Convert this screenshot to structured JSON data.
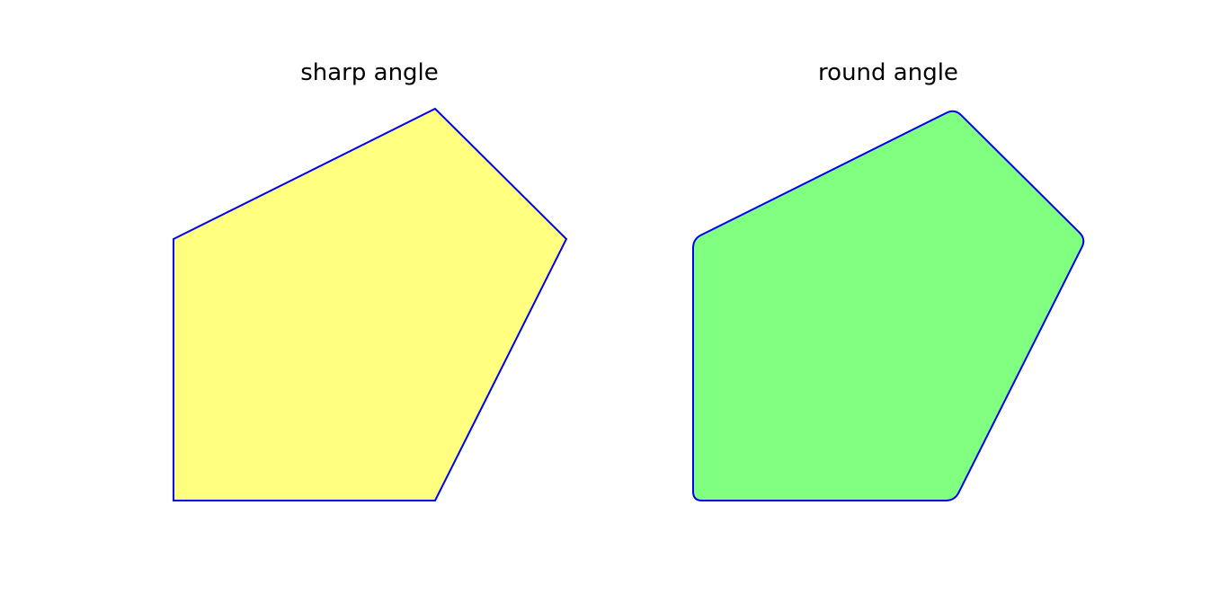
{
  "panels": [
    {
      "title": "sharp angle",
      "fill_color": "#ffff80",
      "stroke_color": "#0000ee",
      "corner_style": "sharp"
    },
    {
      "title": "round angle",
      "fill_color": "#80ff80",
      "stroke_color": "#0000ee",
      "corner_style": "round"
    }
  ]
}
